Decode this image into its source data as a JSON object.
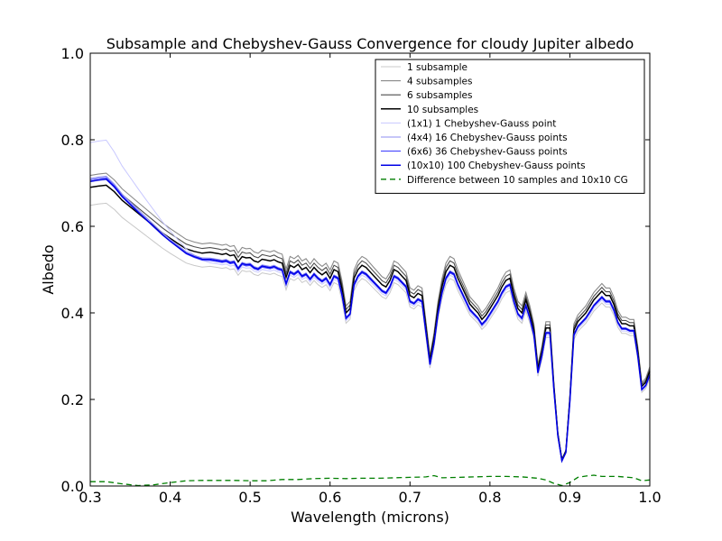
{
  "chart_data": {
    "type": "line",
    "title": "Subsample and Chebyshev-Gauss Convergence for cloudy Jupiter albedo",
    "xlabel": "Wavelength (microns)",
    "ylabel": "Albedo",
    "xlim": [
      0.3,
      1.0
    ],
    "ylim": [
      0.0,
      1.0
    ],
    "xticks": [
      0.3,
      0.4,
      0.5,
      0.6,
      0.7,
      0.8,
      0.9,
      1.0
    ],
    "xtick_labels": [
      "0.3",
      "0.4",
      "0.5",
      "0.6",
      "0.7",
      "0.8",
      "0.9",
      "1.0"
    ],
    "yticks": [
      0.0,
      0.2,
      0.4,
      0.6,
      0.8,
      1.0
    ],
    "ytick_labels": [
      "0.0",
      "0.2",
      "0.4",
      "0.6",
      "0.8",
      "1.0"
    ],
    "grid": false,
    "legend_position": "top-right",
    "base_curve": {
      "x": [
        0.3,
        0.31,
        0.32,
        0.33,
        0.34,
        0.35,
        0.36,
        0.37,
        0.38,
        0.39,
        0.4,
        0.41,
        0.42,
        0.43,
        0.44,
        0.45,
        0.46,
        0.465,
        0.47,
        0.475,
        0.48,
        0.485,
        0.49,
        0.495,
        0.5,
        0.505,
        0.51,
        0.515,
        0.52,
        0.525,
        0.53,
        0.535,
        0.54,
        0.545,
        0.55,
        0.555,
        0.56,
        0.565,
        0.57,
        0.575,
        0.58,
        0.585,
        0.59,
        0.595,
        0.6,
        0.605,
        0.61,
        0.615,
        0.62,
        0.625,
        0.63,
        0.635,
        0.64,
        0.645,
        0.65,
        0.655,
        0.66,
        0.665,
        0.67,
        0.675,
        0.68,
        0.685,
        0.69,
        0.695,
        0.7,
        0.705,
        0.71,
        0.715,
        0.72,
        0.725,
        0.73,
        0.735,
        0.74,
        0.745,
        0.75,
        0.755,
        0.76,
        0.765,
        0.77,
        0.775,
        0.78,
        0.785,
        0.79,
        0.795,
        0.8,
        0.805,
        0.81,
        0.815,
        0.82,
        0.825,
        0.83,
        0.835,
        0.84,
        0.845,
        0.85,
        0.855,
        0.86,
        0.865,
        0.87,
        0.875,
        0.88,
        0.885,
        0.89,
        0.895,
        0.9,
        0.905,
        0.91,
        0.915,
        0.92,
        0.925,
        0.93,
        0.935,
        0.94,
        0.945,
        0.95,
        0.955,
        0.96,
        0.965,
        0.97,
        0.975,
        0.98,
        0.985,
        0.99,
        0.995,
        1.0
      ],
      "y": [
        0.69,
        0.693,
        0.695,
        0.68,
        0.66,
        0.645,
        0.63,
        0.615,
        0.6,
        0.585,
        0.572,
        0.56,
        0.548,
        0.542,
        0.538,
        0.54,
        0.537,
        0.535,
        0.537,
        0.532,
        0.534,
        0.518,
        0.53,
        0.527,
        0.528,
        0.52,
        0.517,
        0.524,
        0.522,
        0.52,
        0.523,
        0.518,
        0.515,
        0.482,
        0.51,
        0.505,
        0.512,
        0.5,
        0.505,
        0.493,
        0.505,
        0.495,
        0.488,
        0.495,
        0.48,
        0.5,
        0.495,
        0.455,
        0.4,
        0.41,
        0.48,
        0.5,
        0.51,
        0.505,
        0.495,
        0.485,
        0.475,
        0.465,
        0.46,
        0.475,
        0.5,
        0.495,
        0.485,
        0.475,
        0.44,
        0.435,
        0.445,
        0.44,
        0.365,
        0.29,
        0.34,
        0.41,
        0.46,
        0.495,
        0.51,
        0.505,
        0.48,
        0.46,
        0.44,
        0.42,
        0.41,
        0.4,
        0.385,
        0.395,
        0.41,
        0.425,
        0.44,
        0.46,
        0.475,
        0.48,
        0.44,
        0.41,
        0.4,
        0.43,
        0.4,
        0.36,
        0.27,
        0.31,
        0.365,
        0.365,
        0.23,
        0.12,
        0.06,
        0.08,
        0.2,
        0.36,
        0.38,
        0.39,
        0.4,
        0.415,
        0.43,
        0.44,
        0.45,
        0.44,
        0.44,
        0.42,
        0.39,
        0.375,
        0.375,
        0.37,
        0.37,
        0.31,
        0.23,
        0.24,
        0.265
      ]
    },
    "series": [
      {
        "name": "1 subsample",
        "color": "#c8c8c8",
        "width": 1,
        "dash": "",
        "scale": 0.94
      },
      {
        "name": "4 subsamples",
        "color": "#8a8a8a",
        "width": 1.1,
        "dash": "",
        "scale": 1.04
      },
      {
        "name": "6 subsamples",
        "color": "#4d4d4d",
        "width": 1.1,
        "dash": "",
        "scale": 1.02
      },
      {
        "name": "10 subsamples",
        "color": "#000000",
        "width": 1.5,
        "dash": "",
        "scale": 1.0
      },
      {
        "name": "(1x1) 1 Chebyshev-Gauss point",
        "color": "#c8c8ff",
        "width": 1,
        "dash": "",
        "scale": 1.15,
        "low_scale": 0.955
      },
      {
        "name": "(4x4) 16 Chebyshev-Gauss points",
        "color": "#8c8cf2",
        "width": 1.1,
        "dash": "",
        "scale": 1.03,
        "low_scale": 0.975
      },
      {
        "name": "(6x6) 36 Chebyshev-Gauss points",
        "color": "#4646ff",
        "width": 1.1,
        "dash": "",
        "scale": 1.025,
        "low_scale": 0.965
      },
      {
        "name": "(10x10) 100 Chebyshev-Gauss points",
        "color": "#0000e6",
        "width": 1.5,
        "dash": "",
        "scale": 1.02,
        "low_scale": 0.97
      },
      {
        "name": "Difference between 10 samples and 10x10 CG",
        "color": "#007f00",
        "width": 1.3,
        "dash": "6,4",
        "x": [
          0.3,
          0.32,
          0.34,
          0.36,
          0.38,
          0.4,
          0.42,
          0.44,
          0.46,
          0.48,
          0.5,
          0.52,
          0.54,
          0.56,
          0.58,
          0.6,
          0.62,
          0.64,
          0.66,
          0.68,
          0.7,
          0.72,
          0.73,
          0.74,
          0.76,
          0.78,
          0.8,
          0.82,
          0.84,
          0.86,
          0.87,
          0.88,
          0.89,
          0.9,
          0.91,
          0.92,
          0.93,
          0.94,
          0.96,
          0.98,
          0.99,
          1.0
        ],
        "y": [
          0.01,
          0.01,
          0.005,
          0.001,
          0.003,
          0.008,
          0.012,
          0.013,
          0.013,
          0.013,
          0.012,
          0.012,
          0.015,
          0.015,
          0.017,
          0.018,
          0.017,
          0.018,
          0.018,
          0.019,
          0.02,
          0.021,
          0.024,
          0.019,
          0.02,
          0.021,
          0.022,
          0.022,
          0.021,
          0.018,
          0.014,
          0.006,
          0.001,
          0.008,
          0.02,
          0.023,
          0.025,
          0.022,
          0.022,
          0.019,
          0.012,
          0.014
        ]
      }
    ]
  }
}
